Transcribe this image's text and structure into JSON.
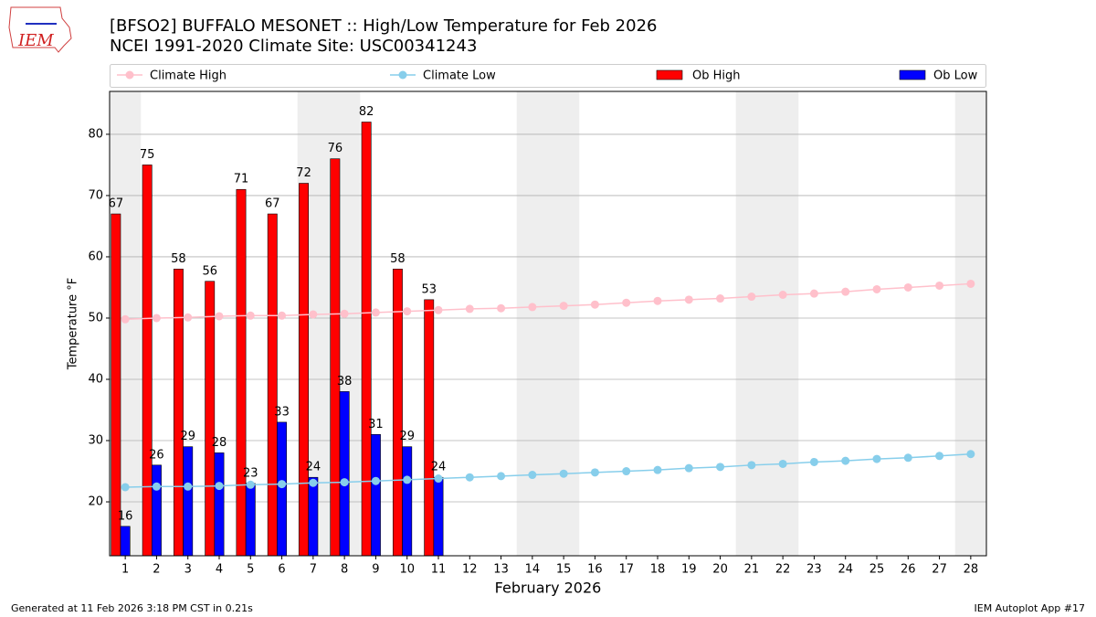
{
  "chart_data": {
    "type": "bar",
    "title": "[BFSO2] BUFFALO MESONET :: High/Low Temperature for Feb 2026",
    "subtitle": "NCEI 1991-2020 Climate Site: USC00341243",
    "logo_text": "IEM",
    "xlabel": "February 2026",
    "ylabel": "Temperature °F",
    "footer_left": "Generated at 11 Feb 2026 3:18 PM CST in 0.21s",
    "footer_right": "IEM Autoplot App #17",
    "x": [
      1,
      2,
      3,
      4,
      5,
      6,
      7,
      8,
      9,
      10,
      11,
      12,
      13,
      14,
      15,
      16,
      17,
      18,
      19,
      20,
      21,
      22,
      23,
      24,
      25,
      26,
      27,
      28
    ],
    "xlim": [
      0.5,
      28.5
    ],
    "xticks": [
      1,
      2,
      3,
      4,
      5,
      6,
      7,
      8,
      9,
      10,
      11,
      12,
      13,
      14,
      15,
      16,
      17,
      18,
      19,
      20,
      21,
      22,
      23,
      24,
      25,
      26,
      27,
      28
    ],
    "ylim": [
      11.2,
      87
    ],
    "yticks": [
      20,
      30,
      40,
      50,
      60,
      70,
      80
    ],
    "grid": true,
    "shaded_days": [
      1,
      7,
      8,
      14,
      15,
      21,
      22,
      28
    ],
    "series": [
      {
        "name": "Climate High",
        "kind": "line",
        "color": "#ffc0cb",
        "values": [
          49.8,
          50.0,
          50.1,
          50.3,
          50.4,
          50.4,
          50.6,
          50.7,
          50.9,
          51.1,
          51.3,
          51.5,
          51.6,
          51.8,
          52.0,
          52.2,
          52.5,
          52.8,
          53.0,
          53.2,
          53.5,
          53.8,
          54.0,
          54.3,
          54.7,
          55.0,
          55.3,
          55.6
        ]
      },
      {
        "name": "Climate Low",
        "kind": "line",
        "color": "#87ceeb",
        "values": [
          22.4,
          22.5,
          22.5,
          22.6,
          22.8,
          22.9,
          23.1,
          23.2,
          23.4,
          23.6,
          23.8,
          24.0,
          24.2,
          24.4,
          24.6,
          24.8,
          25.0,
          25.2,
          25.5,
          25.7,
          26.0,
          26.2,
          26.5,
          26.7,
          27.0,
          27.2,
          27.5,
          27.8
        ]
      },
      {
        "name": "Ob High",
        "kind": "bar",
        "color": "#ff0000",
        "values": [
          67,
          75,
          58,
          56,
          71,
          67,
          72,
          76,
          82,
          58,
          53,
          null,
          null,
          null,
          null,
          null,
          null,
          null,
          null,
          null,
          null,
          null,
          null,
          null,
          null,
          null,
          null,
          null
        ]
      },
      {
        "name": "Ob Low",
        "kind": "bar",
        "color": "#0000ff",
        "values": [
          16,
          26,
          29,
          28,
          23,
          33,
          24,
          38,
          31,
          29,
          24,
          null,
          null,
          null,
          null,
          null,
          null,
          null,
          null,
          null,
          null,
          null,
          null,
          null,
          null,
          null,
          null,
          null
        ]
      }
    ]
  }
}
